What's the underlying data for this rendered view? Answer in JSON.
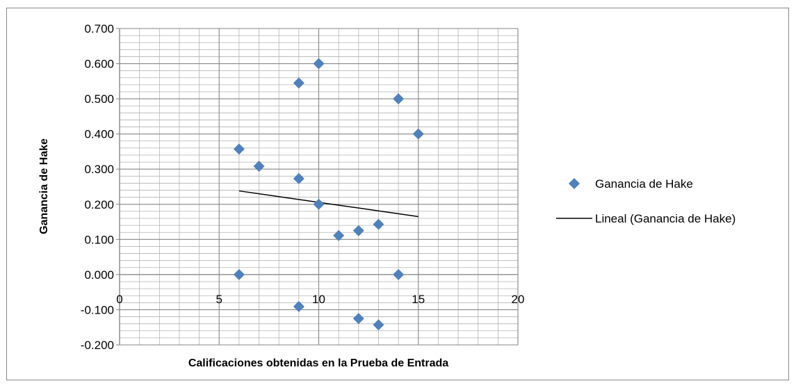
{
  "chart_data": {
    "type": "scatter",
    "xlabel": "Calificaciones obtenidas en la Prueba de Entrada",
    "ylabel": "Ganancia de Hake",
    "xlim": [
      0,
      20
    ],
    "ylim": [
      -0.2,
      0.7
    ],
    "x_ticks": [
      "0",
      "5",
      "10",
      "15",
      "20"
    ],
    "y_ticks": [
      "0.700",
      "0.600",
      "0.500",
      "0.400",
      "0.300",
      "0.200",
      "0.100",
      "0.000",
      "-0.100",
      "-0.200"
    ],
    "grid": true,
    "legend_position": "right",
    "series": [
      {
        "name": "Ganancia de Hake",
        "marker": "diamond",
        "color": "#4F81BD",
        "points": [
          {
            "x": 6,
            "y": 0.357
          },
          {
            "x": 6,
            "y": 0.0
          },
          {
            "x": 7,
            "y": 0.308
          },
          {
            "x": 9,
            "y": 0.545
          },
          {
            "x": 9,
            "y": 0.273
          },
          {
            "x": 9,
            "y": -0.091
          },
          {
            "x": 10,
            "y": 0.6
          },
          {
            "x": 10,
            "y": 0.2
          },
          {
            "x": 11,
            "y": 0.111
          },
          {
            "x": 12,
            "y": 0.125
          },
          {
            "x": 12,
            "y": -0.125
          },
          {
            "x": 13,
            "y": 0.143
          },
          {
            "x": 13,
            "y": -0.143
          },
          {
            "x": 14,
            "y": 0.5
          },
          {
            "x": 14,
            "y": 0.0
          },
          {
            "x": 15,
            "y": 0.4
          }
        ]
      },
      {
        "name": "Lineal (Ganancia de Hake)",
        "type": "line",
        "color": "#000000",
        "points": [
          {
            "x": 6,
            "y": 0.238
          },
          {
            "x": 15,
            "y": 0.165
          }
        ]
      }
    ]
  }
}
